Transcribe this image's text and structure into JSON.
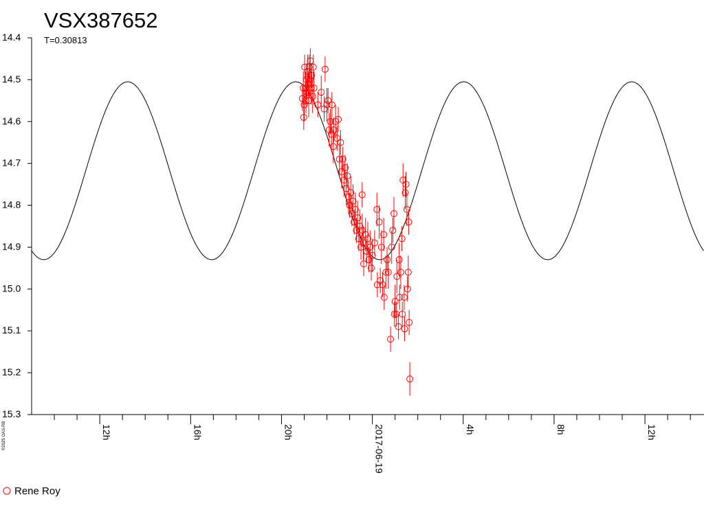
{
  "chart_data": {
    "type": "scatter",
    "title": "VSX387652",
    "subtitle": "T=0.30813",
    "period_days": 0.30813,
    "ylabel": "",
    "xlabel": "",
    "y_inverted": true,
    "ylim": [
      14.4,
      15.3
    ],
    "yticks": [
      "14.4",
      "14.5",
      "14.6",
      "14.7",
      "14.8",
      "14.9",
      "15.0",
      "15.1",
      "15.2",
      "15.3"
    ],
    "xlim_hours": [
      9.0,
      38.6
    ],
    "xticks": [
      {
        "hour": 12,
        "label": "12h"
      },
      {
        "hour": 16,
        "label": "16h"
      },
      {
        "hour": 20,
        "label": "20h"
      },
      {
        "hour": 24,
        "label": "2017-06-19"
      },
      {
        "hour": 28,
        "label": "4h"
      },
      {
        "hour": 32,
        "label": "8h"
      },
      {
        "hour": 36,
        "label": "12h"
      }
    ],
    "model_curve": {
      "color": "#000000",
      "max_magnitude": 14.93,
      "min_magnitude": 14.505,
      "brightest_peak_hour": 13.23,
      "faintest_dip_hour": 10.8
    },
    "legend_position": "bottom-left",
    "series": [
      {
        "name": "Rene Roy",
        "color": "#ff0000",
        "marker": "open-circle",
        "points": [
          [
            20.92,
            14.545,
            0.03
          ],
          [
            20.96,
            14.52,
            0.04
          ],
          [
            20.98,
            14.59,
            0.03
          ],
          [
            21.0,
            14.56,
            0.04
          ],
          [
            21.02,
            14.47,
            0.03
          ],
          [
            21.06,
            14.52,
            0.04
          ],
          [
            21.08,
            14.55,
            0.03
          ],
          [
            21.1,
            14.5,
            0.04
          ],
          [
            21.13,
            14.53,
            0.03
          ],
          [
            21.15,
            14.48,
            0.04
          ],
          [
            21.18,
            14.51,
            0.03
          ],
          [
            21.2,
            14.55,
            0.04
          ],
          [
            21.22,
            14.47,
            0.03
          ],
          [
            21.25,
            14.5,
            0.04
          ],
          [
            21.27,
            14.455,
            0.03
          ],
          [
            21.3,
            14.52,
            0.04
          ],
          [
            21.33,
            14.49,
            0.03
          ],
          [
            21.37,
            14.54,
            0.04
          ],
          [
            21.4,
            14.47,
            0.03
          ],
          [
            21.43,
            14.52,
            0.04
          ],
          [
            21.6,
            14.56,
            0.03
          ],
          [
            21.75,
            14.53,
            0.04
          ],
          [
            21.88,
            14.57,
            0.03
          ],
          [
            21.92,
            14.475,
            0.03
          ],
          [
            22.0,
            14.56,
            0.04
          ],
          [
            22.05,
            14.55,
            0.03
          ],
          [
            22.1,
            14.62,
            0.04
          ],
          [
            22.15,
            14.6,
            0.03
          ],
          [
            22.2,
            14.63,
            0.04
          ],
          [
            22.22,
            14.56,
            0.03
          ],
          [
            22.28,
            14.66,
            0.04
          ],
          [
            22.3,
            14.62,
            0.03
          ],
          [
            22.38,
            14.6,
            0.04
          ],
          [
            22.45,
            14.64,
            0.03
          ],
          [
            22.5,
            14.595,
            0.03
          ],
          [
            22.55,
            14.69,
            0.04
          ],
          [
            22.6,
            14.65,
            0.03
          ],
          [
            22.65,
            14.72,
            0.04
          ],
          [
            22.7,
            14.69,
            0.03
          ],
          [
            22.75,
            14.74,
            0.04
          ],
          [
            22.8,
            14.71,
            0.03
          ],
          [
            22.85,
            14.76,
            0.04
          ],
          [
            22.9,
            14.73,
            0.03
          ],
          [
            22.95,
            14.78,
            0.04
          ],
          [
            23.0,
            14.8,
            0.03
          ],
          [
            23.05,
            14.77,
            0.04
          ],
          [
            23.1,
            14.82,
            0.03
          ],
          [
            23.15,
            14.79,
            0.04
          ],
          [
            23.2,
            14.84,
            0.03
          ],
          [
            23.25,
            14.81,
            0.04
          ],
          [
            23.3,
            14.86,
            0.03
          ],
          [
            23.35,
            14.83,
            0.04
          ],
          [
            23.4,
            14.88,
            0.03
          ],
          [
            23.45,
            14.85,
            0.04
          ],
          [
            23.5,
            14.9,
            0.03
          ],
          [
            23.55,
            14.86,
            0.04
          ],
          [
            23.55,
            14.775,
            0.03
          ],
          [
            23.6,
            14.89,
            0.04
          ],
          [
            23.62,
            14.94,
            0.03
          ],
          [
            23.7,
            14.87,
            0.04
          ],
          [
            23.75,
            14.91,
            0.03
          ],
          [
            23.8,
            14.88,
            0.04
          ],
          [
            23.85,
            14.93,
            0.03
          ],
          [
            23.9,
            14.9,
            0.04
          ],
          [
            23.95,
            14.95,
            0.03
          ],
          [
            24.0,
            14.92,
            0.04
          ],
          [
            24.1,
            14.89,
            0.03
          ],
          [
            24.2,
            14.81,
            0.04
          ],
          [
            24.22,
            14.99,
            0.03
          ],
          [
            24.3,
            14.84,
            0.04
          ],
          [
            24.35,
            14.98,
            0.03
          ],
          [
            24.4,
            14.9,
            0.04
          ],
          [
            24.45,
            14.99,
            0.03
          ],
          [
            24.5,
            14.87,
            0.04
          ],
          [
            24.52,
            15.02,
            0.03
          ],
          [
            24.6,
            14.96,
            0.04
          ],
          [
            24.65,
            14.93,
            0.03
          ],
          [
            24.7,
            14.96,
            0.04
          ],
          [
            24.8,
            15.12,
            0.03
          ],
          [
            24.85,
            14.9,
            0.04
          ],
          [
            24.9,
            14.86,
            0.03
          ],
          [
            24.95,
            14.82,
            0.04
          ],
          [
            24.97,
            15.06,
            0.03
          ],
          [
            25.0,
            15.03,
            0.04
          ],
          [
            25.05,
            15.06,
            0.03
          ],
          [
            25.08,
            14.97,
            0.04
          ],
          [
            25.15,
            15.09,
            0.03
          ],
          [
            25.18,
            14.93,
            0.04
          ],
          [
            25.2,
            15.02,
            0.03
          ],
          [
            25.25,
            14.96,
            0.04
          ],
          [
            25.3,
            14.88,
            0.03
          ],
          [
            25.32,
            15.06,
            0.03
          ],
          [
            25.35,
            14.74,
            0.04
          ],
          [
            25.4,
            15.02,
            0.03
          ],
          [
            25.42,
            15.095,
            0.03
          ],
          [
            25.45,
            14.77,
            0.04
          ],
          [
            25.48,
            14.75,
            0.03
          ],
          [
            25.52,
            14.81,
            0.04
          ],
          [
            25.55,
            15.0,
            0.03
          ],
          [
            25.58,
            14.96,
            0.04
          ],
          [
            25.6,
            14.84,
            0.03
          ],
          [
            25.62,
            15.08,
            0.03
          ],
          [
            25.65,
            15.215,
            0.04
          ]
        ]
      }
    ]
  }
}
